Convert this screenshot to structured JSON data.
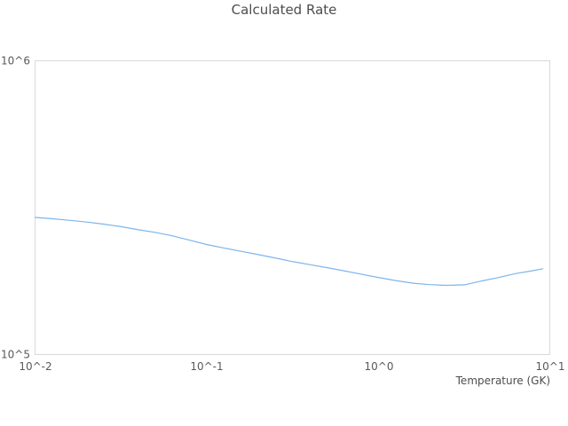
{
  "chart_data": {
    "type": "line",
    "title": "Calculated Rate",
    "xlabel": "Temperature (GK)",
    "ylabel": "",
    "x_scale": "log",
    "y_scale": "log",
    "xlim": [
      0.01,
      10
    ],
    "ylim": [
      100000,
      1000000
    ],
    "grid": false,
    "legend_position": "none",
    "x_tick_labels": [
      "10^-2",
      "10^-1",
      "10^0",
      "10^1"
    ],
    "x_tick_values": [
      0.01,
      0.1,
      1,
      10
    ],
    "y_tick_labels": [
      "10^5",
      "10^6"
    ],
    "y_tick_values": [
      100000,
      1000000
    ],
    "series": [
      {
        "name": "Calculated Rate",
        "color": "#7cb5ec",
        "x": [
          0.01,
          0.0125,
          0.016,
          0.02,
          0.025,
          0.032,
          0.04,
          0.05,
          0.063,
          0.079,
          0.1,
          0.125,
          0.16,
          0.2,
          0.25,
          0.32,
          0.4,
          0.5,
          0.63,
          0.79,
          1.0,
          1.25,
          1.6,
          2.0,
          2.5,
          3.2,
          4.0,
          5.0,
          6.3,
          7.9,
          9.1
        ],
        "y": [
          293000,
          290000,
          286300,
          282500,
          278000,
          272300,
          266000,
          260600,
          253600,
          245500,
          237000,
          230700,
          224400,
          218800,
          213300,
          207000,
          202300,
          197700,
          192800,
          187900,
          183000,
          178800,
          175000,
          173000,
          172000,
          172800,
          178000,
          182800,
          188600,
          192800,
          196000
        ]
      }
    ]
  }
}
